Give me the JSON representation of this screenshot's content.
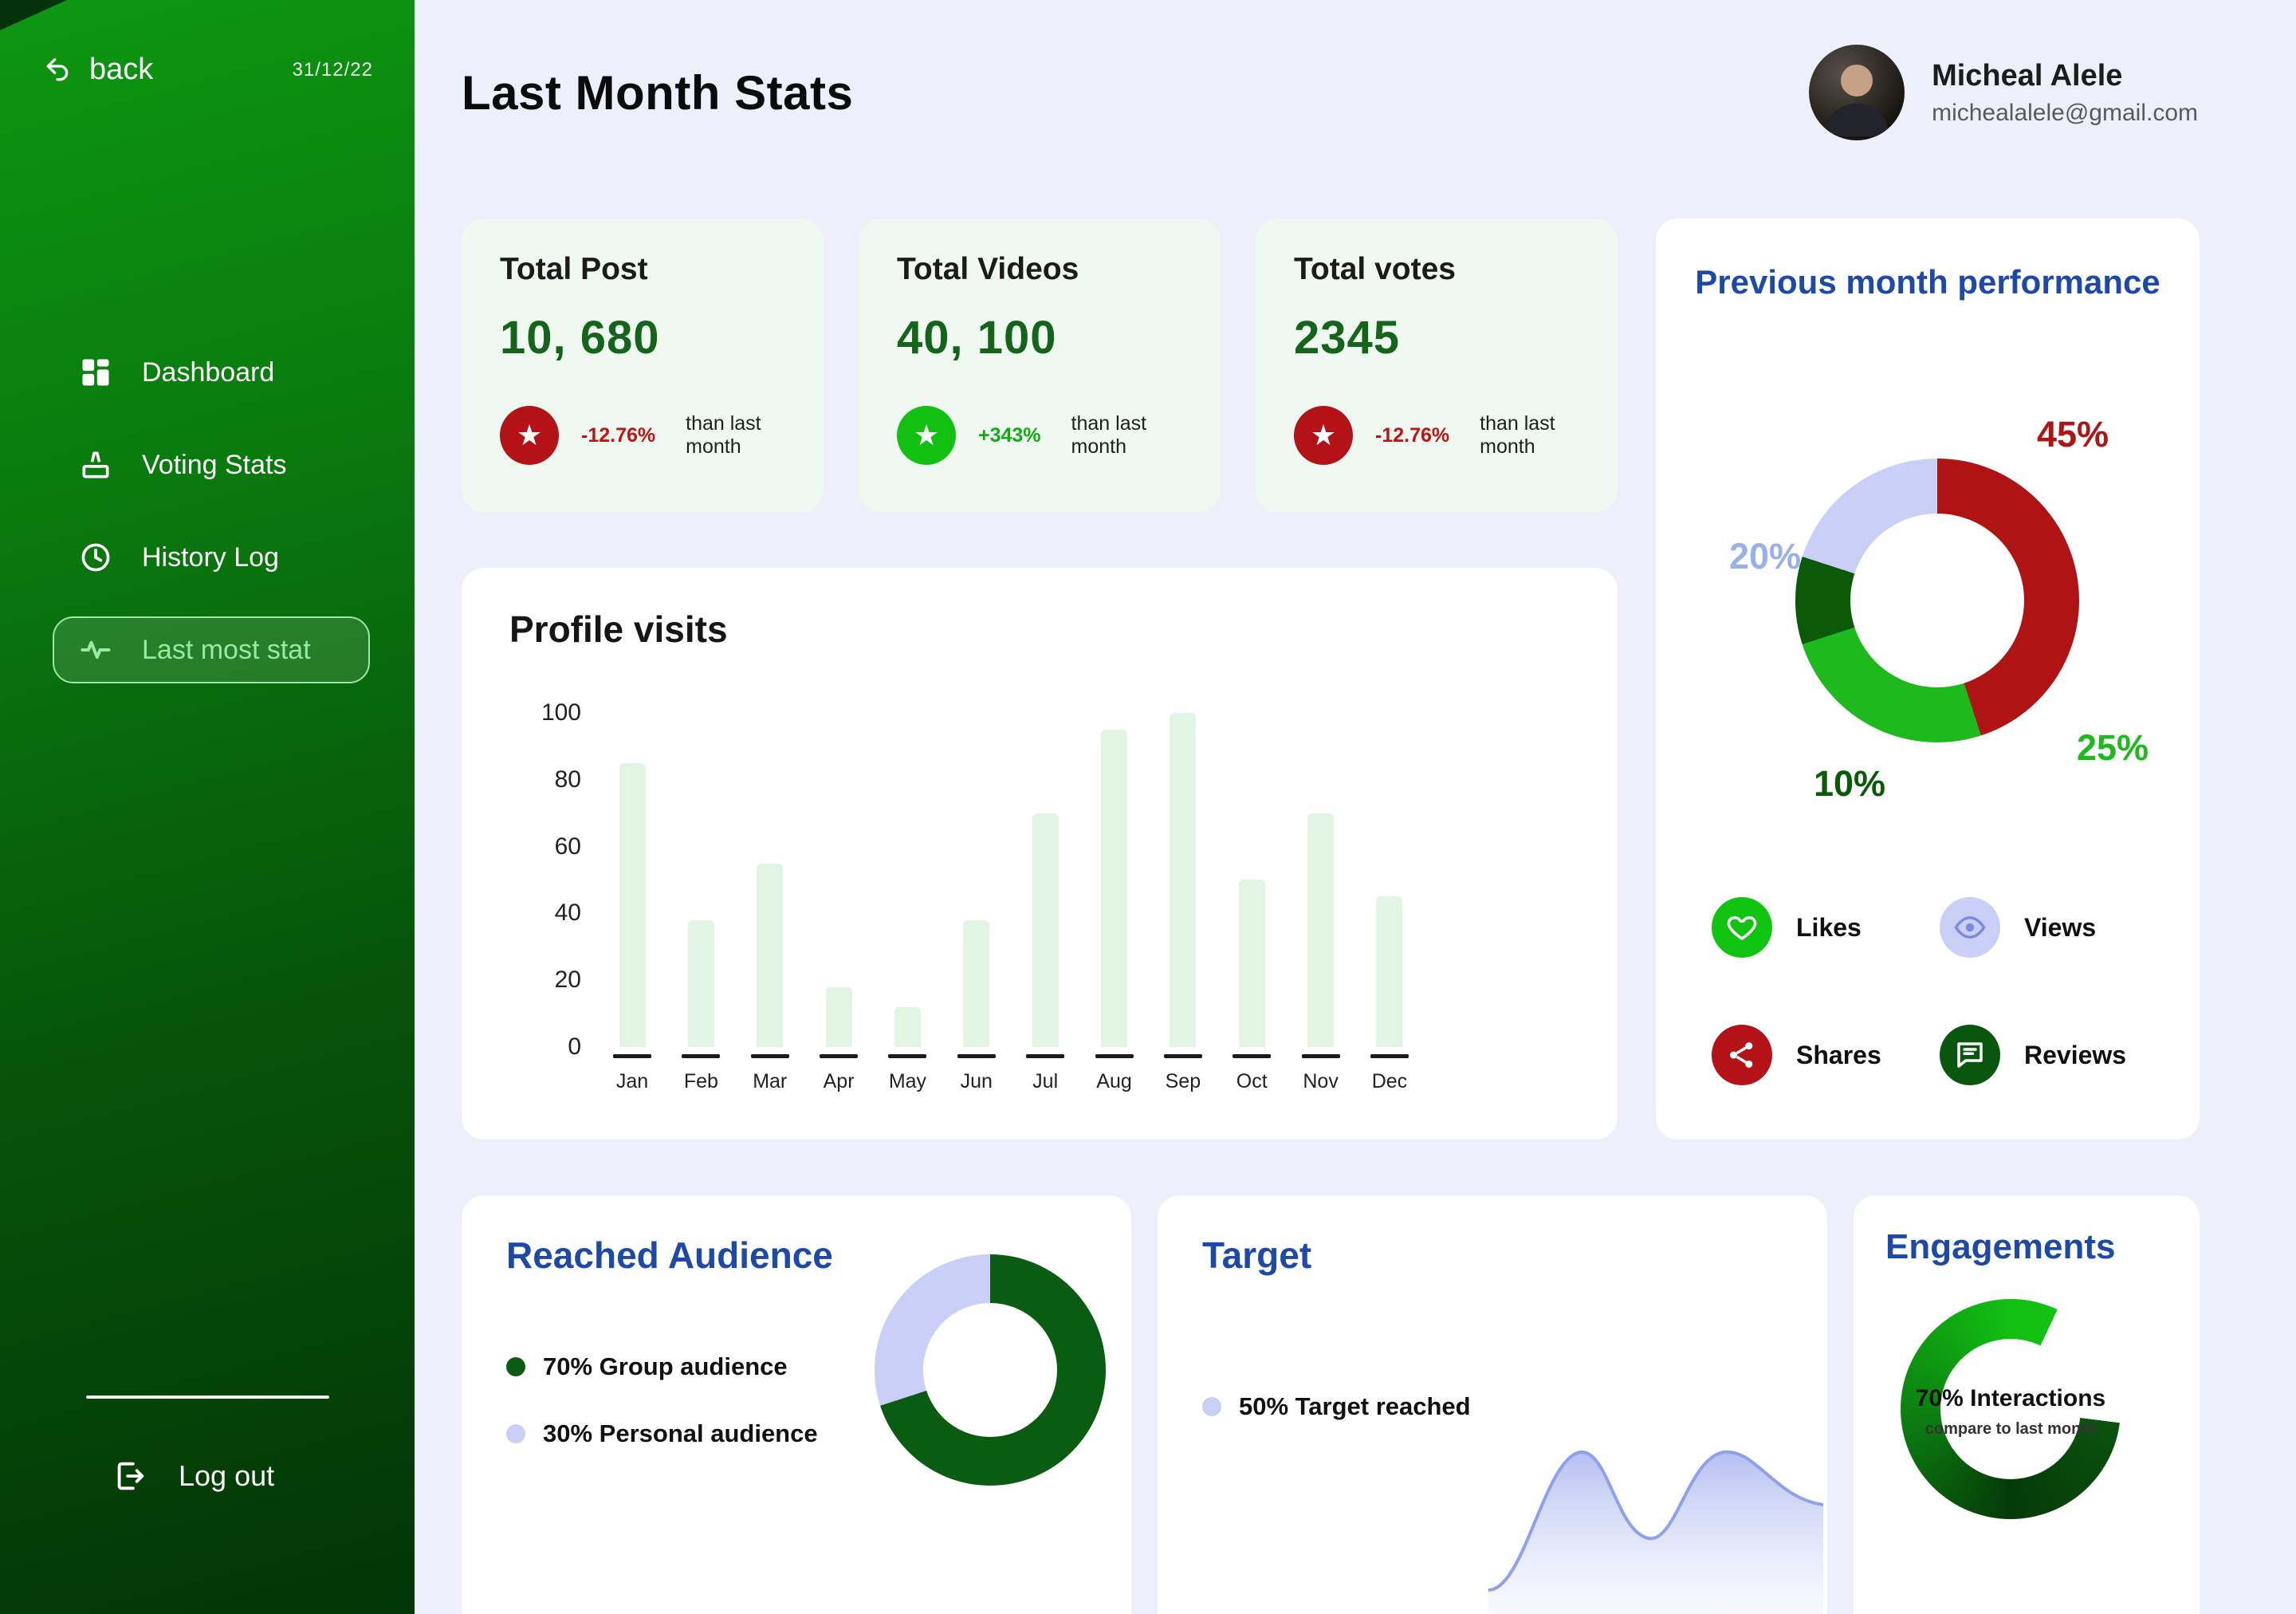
{
  "sidebar": {
    "back_label": "back",
    "date": "31/12/22",
    "items": [
      {
        "label": "Dashboard",
        "active": false
      },
      {
        "label": "Voting Stats",
        "active": false
      },
      {
        "label": "History Log",
        "active": false
      },
      {
        "label": "Last most stat",
        "active": true
      }
    ],
    "logout_label": "Log out"
  },
  "header": {
    "title": "Last Month Stats",
    "user": {
      "name": "Micheal Alele",
      "email": "michealalele@gmail.com"
    }
  },
  "stats": [
    {
      "title": "Total Post",
      "value": "10, 680",
      "delta": "-12.76%",
      "note": "than last month",
      "trend": "down"
    },
    {
      "title": "Total Videos",
      "value": "40, 100",
      "delta": "+343%",
      "note": "than last month",
      "trend": "up"
    },
    {
      "title": "Total votes",
      "value": "2345",
      "delta": "-12.76%",
      "note": "than last month",
      "trend": "down"
    }
  ],
  "performance": {
    "title": "Previous month performance",
    "donut": {
      "segments": [
        {
          "label": "45%",
          "value": 45,
          "color": "#b01313"
        },
        {
          "label": "25%",
          "value": 25,
          "color": "#1db91d"
        },
        {
          "label": "10%",
          "value": 10,
          "color": "#0a5a0a"
        },
        {
          "label": "20%",
          "value": 20,
          "color": "#c9cff7"
        }
      ]
    },
    "legend": [
      {
        "label": "Likes",
        "color": "#12c412"
      },
      {
        "label": "Views",
        "color": "#c9cff7"
      },
      {
        "label": "Shares",
        "color": "#b31217"
      },
      {
        "label": "Reviews",
        "color": "#09570f"
      }
    ]
  },
  "profile_visits": {
    "title": "Profile visits",
    "y_ticks": [
      "100",
      "80",
      "60",
      "40",
      "20",
      "0"
    ],
    "y_max": 100,
    "months": [
      "Jan",
      "Feb",
      "Mar",
      "Apr",
      "May",
      "Jun",
      "Jul",
      "Aug",
      "Sep",
      "Oct",
      "Nov",
      "Dec"
    ],
    "values": [
      85,
      38,
      55,
      18,
      12,
      38,
      70,
      95,
      104,
      50,
      70,
      45
    ]
  },
  "reached_audience": {
    "title": "Reached Audience",
    "legend": [
      {
        "label": "70% Group audience",
        "value": 70,
        "color": "#0a5c12"
      },
      {
        "label": "30% Personal audience",
        "value": 30,
        "color": "#c9cff7"
      }
    ]
  },
  "target": {
    "title": "Target",
    "legend": [
      {
        "label": "50% Target reached",
        "value": 50,
        "color": "#c9cff7"
      }
    ]
  },
  "engagements": {
    "title": "Engagements",
    "headline": "70% Interactions",
    "subtext": "compare to last month",
    "value": 70
  },
  "chart_data": [
    {
      "type": "pie",
      "title": "Previous month performance",
      "labels": [
        "45%",
        "25%",
        "10%",
        "20%"
      ],
      "values": [
        45,
        25,
        10,
        20
      ],
      "colors": [
        "#b01313",
        "#1db91d",
        "#0a5a0a",
        "#c9cff7"
      ]
    },
    {
      "type": "bar",
      "title": "Profile visits",
      "categories": [
        "Jan",
        "Feb",
        "Mar",
        "Apr",
        "May",
        "Jun",
        "Jul",
        "Aug",
        "Sep",
        "Oct",
        "Nov",
        "Dec"
      ],
      "values": [
        85,
        38,
        55,
        18,
        12,
        38,
        70,
        95,
        104,
        50,
        70,
        45
      ],
      "ylim": [
        0,
        100
      ]
    },
    {
      "type": "pie",
      "title": "Reached Audience",
      "labels": [
        "Group audience",
        "Personal audience"
      ],
      "values": [
        70,
        30
      ],
      "colors": [
        "#0a5c12",
        "#c9cff7"
      ]
    },
    {
      "type": "area",
      "title": "Target",
      "annotation": "50% Target reached"
    },
    {
      "type": "gauge",
      "title": "Engagements",
      "value": 70,
      "annotation": "compare to last month"
    }
  ],
  "colors": {
    "sidebar_green_top": "#0d9711",
    "sidebar_green_bottom": "#033506",
    "accent_blue": "#1d49a8",
    "red": "#b31217",
    "green": "#1db91d",
    "dark_green": "#0a5c12",
    "lavender": "#c9cff7",
    "main_bg": "#edeffb",
    "stat_card_bg": "#f0f9f1",
    "bar_fill": "#e2f5e5",
    "active_item_text": "#9be8a5"
  }
}
